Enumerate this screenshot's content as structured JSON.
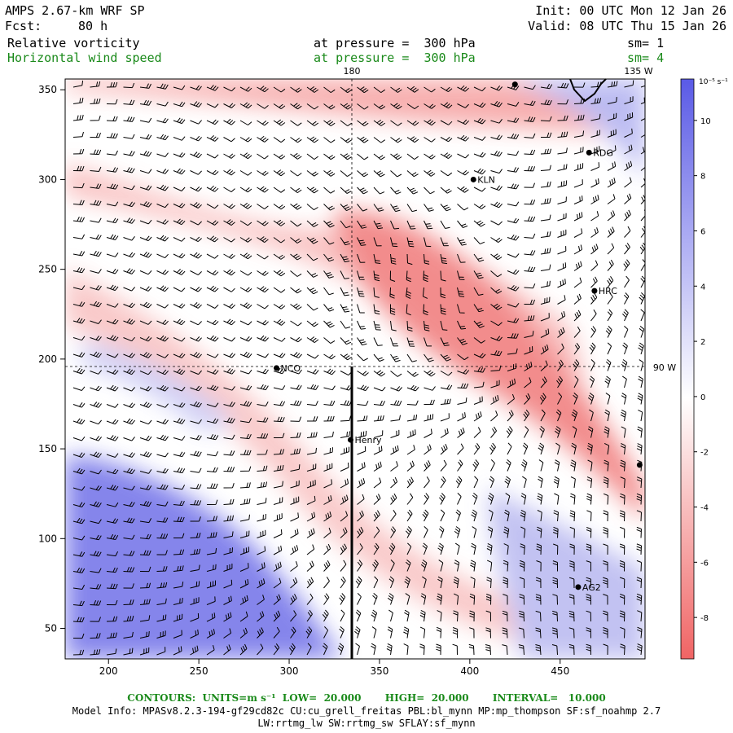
{
  "header": {
    "model": "AMPS 2.67-km WRF SP",
    "fcst_label": "Fcst:",
    "fcst_value": "80 h",
    "init": "Init: 00 UTC Mon 12 Jan 26",
    "valid": "Valid: 08 UTC Thu 15 Jan 26",
    "field1_name": "Relative vorticity",
    "field1_level": "at pressure =  300 hPa",
    "field1_sm": "sm= 1",
    "field2_name": "Horizontal wind speed",
    "field2_level": "at pressure =  300 hPa",
    "field2_sm": "sm= 4"
  },
  "map_labels": {
    "lon_180": "180",
    "lon_135w": "135 W",
    "lon_90w": "90 W"
  },
  "stations": [
    {
      "name": "RDG",
      "x": 466,
      "y": 315
    },
    {
      "name": "KLN",
      "x": 402,
      "y": 300
    },
    {
      "name": "HRC",
      "x": 469,
      "y": 238
    },
    {
      "name": "NCO",
      "x": 293,
      "y": 195
    },
    {
      "name": "Henry",
      "x": 334,
      "y": 155
    },
    {
      "name": "AG2",
      "x": 460,
      "y": 73
    },
    {
      "name": "",
      "x": 425,
      "y": 353
    },
    {
      "name": "",
      "x": 494,
      "y": 141
    }
  ],
  "axes": {
    "x_ticks": [
      "200",
      "250",
      "300",
      "350",
      "400",
      "450"
    ],
    "x_values": [
      200,
      250,
      300,
      350,
      400,
      450
    ],
    "y_ticks": [
      "50",
      "100",
      "150",
      "200",
      "250",
      "300",
      "350"
    ],
    "y_values": [
      50,
      100,
      150,
      200,
      250,
      300,
      350
    ],
    "xlim": [
      176,
      497
    ],
    "ylim": [
      33,
      356
    ]
  },
  "colorbar": {
    "unit": "10⁻⁵ s⁻¹",
    "ticks": [
      "10",
      "8",
      "6",
      "4",
      "2",
      "0",
      "-2",
      "-4",
      "-6",
      "-8"
    ],
    "values": [
      10,
      8,
      6,
      4,
      2,
      0,
      -2,
      -4,
      -6,
      -8
    ],
    "positive_color": "#5a5ae6",
    "negative_color": "#f06464"
  },
  "footer": {
    "contours": "CONTOURS:  UNITS=m s⁻¹  LOW=  20.000       HIGH=  20.000       INTERVAL=   10.000",
    "info1": "Model Info: MPASv8.2.3-194-gf29cd82c CU:cu_grell_freitas PBL:bl_mynn MP:mp_thompson SF:sf_noahmp 2.7",
    "info2": "LW:rrtmg_lw SW:rrtmg_sw SFLAY:sf_mynn"
  }
}
